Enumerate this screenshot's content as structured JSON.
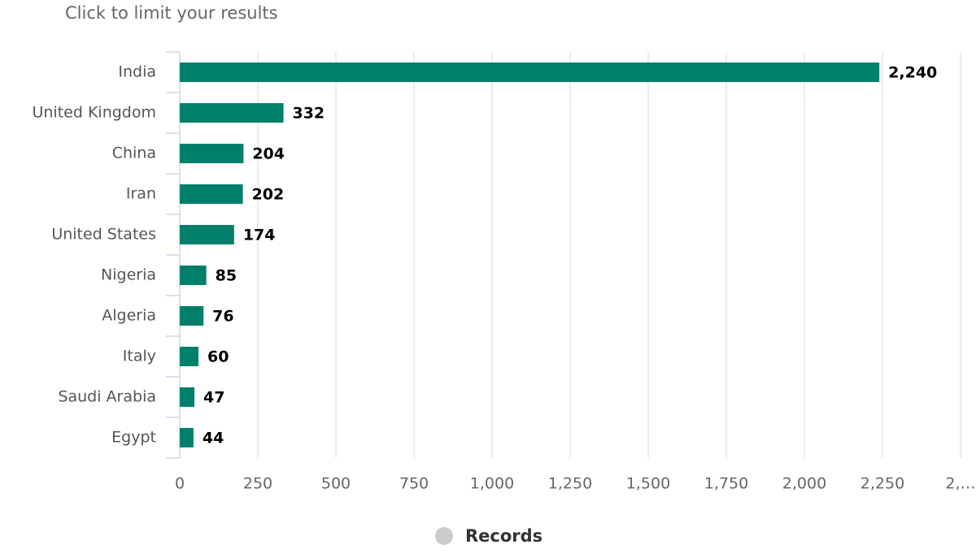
{
  "chart_data": {
    "type": "bar",
    "title": "Click to limit your results",
    "categories": [
      "India",
      "United Kingdom",
      "China",
      "Iran",
      "United States",
      "Nigeria",
      "Algeria",
      "Italy",
      "Saudi Arabia",
      "Egypt"
    ],
    "series": [
      {
        "name": "Records",
        "color": "#007f6a",
        "values": [
          2240,
          332,
          204,
          202,
          174,
          85,
          76,
          60,
          47,
          44
        ],
        "value_labels": [
          "2,240",
          "332",
          "204",
          "202",
          "174",
          "85",
          "76",
          "60",
          "47",
          "44"
        ]
      }
    ],
    "xlim": [
      0,
      2500
    ],
    "xticks": [
      0,
      250,
      500,
      750,
      {
        "value": 1000,
        "label": "1,000"
      },
      {
        "value": 1250,
        "label": "1,250"
      },
      {
        "value": 1500,
        "label": "1,500"
      },
      {
        "value": 1750,
        "label": "1,750"
      },
      {
        "value": 2000,
        "label": "2,000"
      },
      {
        "value": 2250,
        "label": "2,250"
      },
      {
        "value": 2500,
        "label": "2,…"
      }
    ],
    "grid": true,
    "legend": "bottom"
  }
}
